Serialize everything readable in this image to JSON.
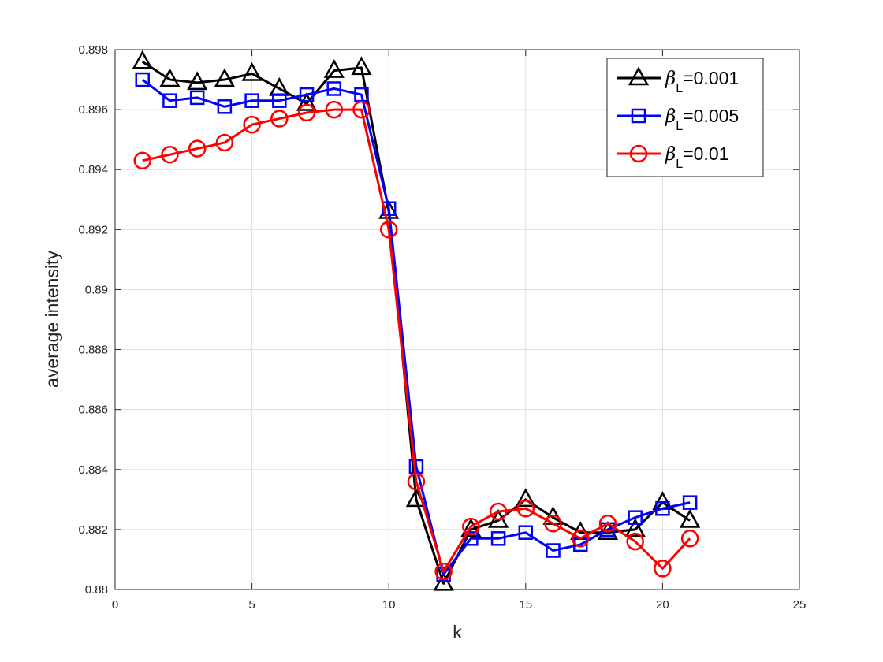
{
  "chart_data": {
    "type": "line",
    "title": "",
    "xlabel": "k",
    "ylabel": "average intensity",
    "xlim": [
      0,
      25
    ],
    "ylim": [
      0.88,
      0.898
    ],
    "xticks": [
      0,
      5,
      10,
      15,
      20,
      25
    ],
    "yticks": [
      0.88,
      0.882,
      0.884,
      0.886,
      0.888,
      0.89,
      0.892,
      0.894,
      0.896,
      0.898
    ],
    "ytick_labels": [
      "0.88",
      "0.882",
      "0.884",
      "0.886",
      "0.888",
      "0.89",
      "0.892",
      "0.894",
      "0.896",
      "0.898"
    ],
    "grid": true,
    "legend_position": "top-right",
    "x": [
      1,
      2,
      3,
      4,
      5,
      6,
      7,
      8,
      9,
      10,
      11,
      12,
      13,
      14,
      15,
      16,
      17,
      18,
      19,
      20,
      21
    ],
    "series": [
      {
        "name_prefix": "β",
        "name_subscript": "L",
        "name_suffix": "=0.001",
        "color": "#000000",
        "marker": "triangle",
        "values": [
          0.8976,
          0.897,
          0.8969,
          0.897,
          0.8972,
          0.8967,
          0.8962,
          0.8973,
          0.8974,
          0.8926,
          0.883,
          0.8802,
          0.882,
          0.8823,
          0.883,
          0.8824,
          0.8819,
          0.8819,
          0.882,
          0.8829,
          0.8823
        ]
      },
      {
        "name_prefix": "β",
        "name_subscript": "L",
        "name_suffix": "=0.005",
        "color": "#0000ff",
        "marker": "square",
        "values": [
          0.897,
          0.8963,
          0.8964,
          0.8961,
          0.8963,
          0.8963,
          0.8965,
          0.8967,
          0.8965,
          0.8927,
          0.8841,
          0.8805,
          0.8817,
          0.8817,
          0.8819,
          0.8813,
          0.8815,
          0.882,
          0.8824,
          0.8827,
          0.8829
        ]
      },
      {
        "name_prefix": "β",
        "name_subscript": "L",
        "name_suffix": "=0.01",
        "color": "#ff0000",
        "marker": "circle",
        "values": [
          0.8943,
          0.8945,
          0.8947,
          0.8949,
          0.8955,
          0.8957,
          0.8959,
          0.896,
          0.896,
          0.892,
          0.8836,
          0.8806,
          0.8821,
          0.8826,
          0.8827,
          0.8822,
          0.8817,
          0.8822,
          0.8816,
          0.8807,
          0.8817
        ]
      }
    ]
  }
}
